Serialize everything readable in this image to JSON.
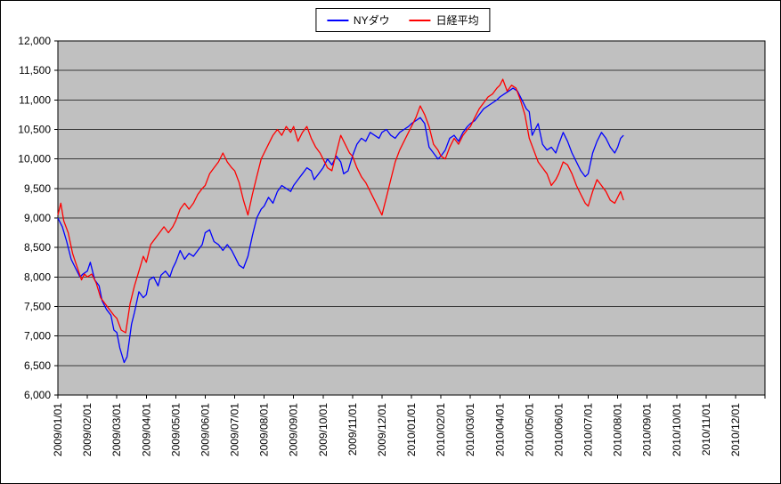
{
  "legend": {
    "items": [
      {
        "label": "NYダウ",
        "color": "#0000ff"
      },
      {
        "label": "日経平均",
        "color": "#ff0000"
      }
    ]
  },
  "chart_data": {
    "type": "line",
    "title": "",
    "plot_bg": "#c0c0c0",
    "grid": true,
    "legend_position": "top",
    "x_axis": {
      "unit": "month",
      "range_months": [
        0,
        24
      ],
      "labels": [
        "2009/01/01",
        "2009/02/01",
        "2009/03/01",
        "2009/04/01",
        "2009/05/01",
        "2009/06/01",
        "2009/07/01",
        "2009/08/01",
        "2009/09/01",
        "2009/10/01",
        "2009/11/01",
        "2009/12/01",
        "2010/01/01",
        "2010/02/01",
        "2010/03/01",
        "2010/04/01",
        "2010/05/01",
        "2010/06/01",
        "2010/07/01",
        "2010/08/01",
        "2010/09/01",
        "2010/10/01",
        "2010/11/01",
        "2010/12/01"
      ]
    },
    "y_axis": {
      "min": 6000,
      "max": 12000,
      "step": 500,
      "tick_labels": [
        "6,000",
        "6,500",
        "7,000",
        "7,500",
        "8,000",
        "8,500",
        "9,000",
        "9,500",
        "10,000",
        "10,500",
        "11,000",
        "11,500",
        "12,000"
      ]
    },
    "series": [
      {
        "name": "NYダウ",
        "color": "#0000ff",
        "points": [
          [
            0.0,
            9000
          ],
          [
            0.15,
            8850
          ],
          [
            0.3,
            8600
          ],
          [
            0.45,
            8300
          ],
          [
            0.55,
            8200
          ],
          [
            0.65,
            8100
          ],
          [
            0.75,
            8000
          ],
          [
            0.85,
            8050
          ],
          [
            1.0,
            8100
          ],
          [
            1.1,
            8250
          ],
          [
            1.25,
            7950
          ],
          [
            1.4,
            7850
          ],
          [
            1.5,
            7600
          ],
          [
            1.65,
            7450
          ],
          [
            1.8,
            7350
          ],
          [
            1.9,
            7100
          ],
          [
            2.0,
            7060
          ],
          [
            2.1,
            6800
          ],
          [
            2.25,
            6550
          ],
          [
            2.35,
            6650
          ],
          [
            2.5,
            7200
          ],
          [
            2.6,
            7400
          ],
          [
            2.75,
            7750
          ],
          [
            2.9,
            7650
          ],
          [
            3.0,
            7700
          ],
          [
            3.1,
            7950
          ],
          [
            3.25,
            8000
          ],
          [
            3.4,
            7850
          ],
          [
            3.5,
            8030
          ],
          [
            3.65,
            8100
          ],
          [
            3.8,
            8000
          ],
          [
            3.9,
            8150
          ],
          [
            4.0,
            8250
          ],
          [
            4.15,
            8450
          ],
          [
            4.3,
            8300
          ],
          [
            4.45,
            8400
          ],
          [
            4.6,
            8350
          ],
          [
            4.75,
            8450
          ],
          [
            4.9,
            8550
          ],
          [
            5.0,
            8750
          ],
          [
            5.15,
            8800
          ],
          [
            5.3,
            8600
          ],
          [
            5.45,
            8550
          ],
          [
            5.6,
            8450
          ],
          [
            5.75,
            8550
          ],
          [
            5.9,
            8450
          ],
          [
            6.0,
            8350
          ],
          [
            6.15,
            8200
          ],
          [
            6.3,
            8150
          ],
          [
            6.45,
            8350
          ],
          [
            6.6,
            8700
          ],
          [
            6.75,
            9000
          ],
          [
            6.9,
            9150
          ],
          [
            7.0,
            9200
          ],
          [
            7.15,
            9350
          ],
          [
            7.3,
            9250
          ],
          [
            7.45,
            9450
          ],
          [
            7.6,
            9550
          ],
          [
            7.75,
            9500
          ],
          [
            7.9,
            9450
          ],
          [
            8.0,
            9550
          ],
          [
            8.15,
            9650
          ],
          [
            8.3,
            9750
          ],
          [
            8.45,
            9850
          ],
          [
            8.6,
            9800
          ],
          [
            8.7,
            9650
          ],
          [
            8.85,
            9750
          ],
          [
            9.0,
            9850
          ],
          [
            9.15,
            10000
          ],
          [
            9.3,
            9900
          ],
          [
            9.45,
            10050
          ],
          [
            9.6,
            9950
          ],
          [
            9.7,
            9750
          ],
          [
            9.85,
            9800
          ],
          [
            10.0,
            10050
          ],
          [
            10.15,
            10250
          ],
          [
            10.3,
            10350
          ],
          [
            10.45,
            10300
          ],
          [
            10.6,
            10450
          ],
          [
            10.75,
            10400
          ],
          [
            10.9,
            10350
          ],
          [
            11.0,
            10450
          ],
          [
            11.15,
            10500
          ],
          [
            11.3,
            10400
          ],
          [
            11.45,
            10350
          ],
          [
            11.6,
            10450
          ],
          [
            11.75,
            10500
          ],
          [
            11.9,
            10550
          ],
          [
            12.0,
            10600
          ],
          [
            12.15,
            10650
          ],
          [
            12.3,
            10700
          ],
          [
            12.45,
            10600
          ],
          [
            12.6,
            10200
          ],
          [
            12.75,
            10100
          ],
          [
            12.9,
            10000
          ],
          [
            13.0,
            10050
          ],
          [
            13.15,
            10150
          ],
          [
            13.3,
            10350
          ],
          [
            13.45,
            10400
          ],
          [
            13.6,
            10300
          ],
          [
            13.75,
            10450
          ],
          [
            13.9,
            10550
          ],
          [
            14.0,
            10600
          ],
          [
            14.15,
            10650
          ],
          [
            14.3,
            10750
          ],
          [
            14.45,
            10850
          ],
          [
            14.6,
            10900
          ],
          [
            14.75,
            10950
          ],
          [
            14.9,
            11000
          ],
          [
            15.0,
            11050
          ],
          [
            15.15,
            11100
          ],
          [
            15.3,
            11150
          ],
          [
            15.45,
            11200
          ],
          [
            15.6,
            11150
          ],
          [
            15.75,
            11000
          ],
          [
            15.9,
            10850
          ],
          [
            16.0,
            10800
          ],
          [
            16.1,
            10400
          ],
          [
            16.2,
            10500
          ],
          [
            16.3,
            10600
          ],
          [
            16.45,
            10250
          ],
          [
            16.6,
            10150
          ],
          [
            16.75,
            10200
          ],
          [
            16.9,
            10100
          ],
          [
            17.0,
            10250
          ],
          [
            17.15,
            10450
          ],
          [
            17.3,
            10300
          ],
          [
            17.45,
            10100
          ],
          [
            17.6,
            9950
          ],
          [
            17.75,
            9800
          ],
          [
            17.9,
            9700
          ],
          [
            18.0,
            9750
          ],
          [
            18.15,
            10100
          ],
          [
            18.3,
            10300
          ],
          [
            18.45,
            10450
          ],
          [
            18.6,
            10350
          ],
          [
            18.75,
            10200
          ],
          [
            18.9,
            10100
          ],
          [
            19.0,
            10200
          ],
          [
            19.1,
            10350
          ],
          [
            19.2,
            10400
          ]
        ]
      },
      {
        "name": "日経平均",
        "color": "#ff0000",
        "points": [
          [
            0.0,
            9050
          ],
          [
            0.1,
            9250
          ],
          [
            0.2,
            8950
          ],
          [
            0.35,
            8750
          ],
          [
            0.5,
            8400
          ],
          [
            0.6,
            8250
          ],
          [
            0.7,
            8100
          ],
          [
            0.8,
            7950
          ],
          [
            0.9,
            8050
          ],
          [
            1.0,
            8000
          ],
          [
            1.15,
            8050
          ],
          [
            1.3,
            7900
          ],
          [
            1.45,
            7650
          ],
          [
            1.6,
            7550
          ],
          [
            1.75,
            7450
          ],
          [
            1.9,
            7350
          ],
          [
            2.0,
            7300
          ],
          [
            2.15,
            7100
          ],
          [
            2.3,
            7055
          ],
          [
            2.45,
            7550
          ],
          [
            2.6,
            7850
          ],
          [
            2.75,
            8100
          ],
          [
            2.9,
            8350
          ],
          [
            3.0,
            8250
          ],
          [
            3.15,
            8550
          ],
          [
            3.3,
            8650
          ],
          [
            3.45,
            8750
          ],
          [
            3.6,
            8850
          ],
          [
            3.75,
            8750
          ],
          [
            3.9,
            8850
          ],
          [
            4.0,
            8950
          ],
          [
            4.15,
            9150
          ],
          [
            4.3,
            9250
          ],
          [
            4.45,
            9150
          ],
          [
            4.6,
            9250
          ],
          [
            4.75,
            9400
          ],
          [
            4.9,
            9500
          ],
          [
            5.0,
            9550
          ],
          [
            5.15,
            9750
          ],
          [
            5.3,
            9850
          ],
          [
            5.45,
            9950
          ],
          [
            5.6,
            10100
          ],
          [
            5.75,
            9950
          ],
          [
            5.9,
            9850
          ],
          [
            6.0,
            9800
          ],
          [
            6.15,
            9600
          ],
          [
            6.3,
            9300
          ],
          [
            6.45,
            9050
          ],
          [
            6.6,
            9400
          ],
          [
            6.75,
            9700
          ],
          [
            6.9,
            10000
          ],
          [
            7.0,
            10100
          ],
          [
            7.15,
            10250
          ],
          [
            7.3,
            10400
          ],
          [
            7.45,
            10500
          ],
          [
            7.6,
            10400
          ],
          [
            7.75,
            10550
          ],
          [
            7.9,
            10450
          ],
          [
            8.0,
            10550
          ],
          [
            8.15,
            10300
          ],
          [
            8.3,
            10450
          ],
          [
            8.45,
            10550
          ],
          [
            8.6,
            10350
          ],
          [
            8.75,
            10200
          ],
          [
            8.9,
            10100
          ],
          [
            9.0,
            10000
          ],
          [
            9.15,
            9850
          ],
          [
            9.3,
            9800
          ],
          [
            9.45,
            10100
          ],
          [
            9.6,
            10400
          ],
          [
            9.75,
            10250
          ],
          [
            9.9,
            10100
          ],
          [
            10.0,
            10050
          ],
          [
            10.15,
            9850
          ],
          [
            10.3,
            9700
          ],
          [
            10.45,
            9600
          ],
          [
            10.6,
            9450
          ],
          [
            10.75,
            9300
          ],
          [
            10.9,
            9150
          ],
          [
            11.0,
            9050
          ],
          [
            11.15,
            9350
          ],
          [
            11.3,
            9650
          ],
          [
            11.45,
            9950
          ],
          [
            11.6,
            10150
          ],
          [
            11.75,
            10300
          ],
          [
            11.9,
            10450
          ],
          [
            12.0,
            10550
          ],
          [
            12.15,
            10700
          ],
          [
            12.3,
            10900
          ],
          [
            12.45,
            10750
          ],
          [
            12.6,
            10550
          ],
          [
            12.75,
            10250
          ],
          [
            12.9,
            10150
          ],
          [
            13.0,
            10050
          ],
          [
            13.15,
            10000
          ],
          [
            13.3,
            10200
          ],
          [
            13.45,
            10350
          ],
          [
            13.6,
            10250
          ],
          [
            13.75,
            10400
          ],
          [
            13.9,
            10500
          ],
          [
            14.0,
            10550
          ],
          [
            14.15,
            10700
          ],
          [
            14.3,
            10850
          ],
          [
            14.45,
            10950
          ],
          [
            14.6,
            11050
          ],
          [
            14.75,
            11100
          ],
          [
            14.9,
            11200
          ],
          [
            15.0,
            11250
          ],
          [
            15.1,
            11350
          ],
          [
            15.25,
            11150
          ],
          [
            15.4,
            11250
          ],
          [
            15.55,
            11200
          ],
          [
            15.7,
            11000
          ],
          [
            15.85,
            10750
          ],
          [
            16.0,
            10350
          ],
          [
            16.15,
            10150
          ],
          [
            16.3,
            9950
          ],
          [
            16.45,
            9850
          ],
          [
            16.6,
            9750
          ],
          [
            16.75,
            9550
          ],
          [
            16.9,
            9650
          ],
          [
            17.0,
            9750
          ],
          [
            17.15,
            9950
          ],
          [
            17.3,
            9900
          ],
          [
            17.45,
            9750
          ],
          [
            17.6,
            9550
          ],
          [
            17.75,
            9400
          ],
          [
            17.9,
            9250
          ],
          [
            18.0,
            9200
          ],
          [
            18.15,
            9450
          ],
          [
            18.3,
            9650
          ],
          [
            18.45,
            9550
          ],
          [
            18.6,
            9450
          ],
          [
            18.75,
            9300
          ],
          [
            18.9,
            9250
          ],
          [
            19.0,
            9350
          ],
          [
            19.1,
            9450
          ],
          [
            19.2,
            9300
          ]
        ]
      }
    ]
  }
}
